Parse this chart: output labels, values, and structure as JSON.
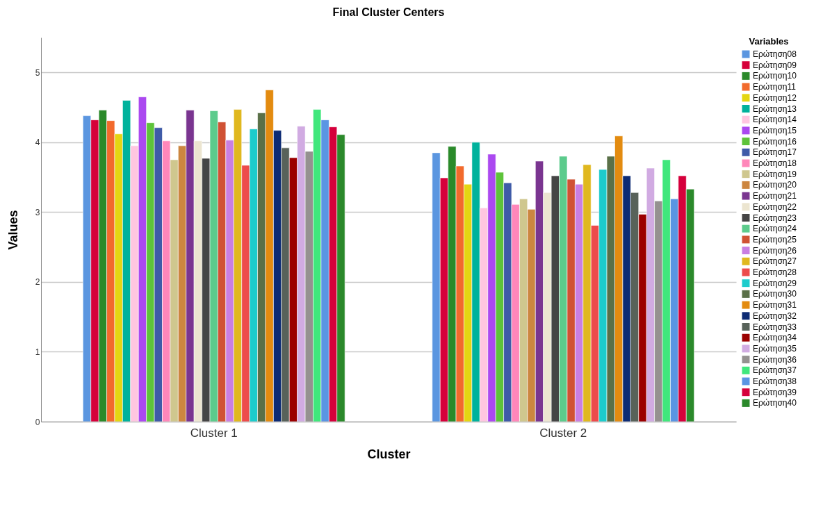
{
  "chart_data": {
    "type": "bar",
    "title": "Final Cluster Centers",
    "xlabel": "Cluster",
    "ylabel": "Values",
    "legend_title": "Variables",
    "legend": "right",
    "grid": "y",
    "ylim": [
      0,
      5.5
    ],
    "yticks": [
      0,
      1,
      2,
      3,
      4,
      5
    ],
    "categories": [
      "Cluster 1",
      "Cluster 2"
    ],
    "series": [
      {
        "name": "Ερώτηση08",
        "color": "#5b96e0",
        "values": [
          4.38,
          3.85
        ]
      },
      {
        "name": "Ερώτηση09",
        "color": "#d6003a",
        "values": [
          4.32,
          3.49
        ]
      },
      {
        "name": "Ερώτηση10",
        "color": "#2a8a2a",
        "values": [
          4.46,
          3.94
        ]
      },
      {
        "name": "Ερώτηση11",
        "color": "#f26a2c",
        "values": [
          4.31,
          3.66
        ]
      },
      {
        "name": "Ερώτηση12",
        "color": "#e4d612",
        "values": [
          4.12,
          3.4
        ]
      },
      {
        "name": "Ερώτηση13",
        "color": "#00b29c",
        "values": [
          4.6,
          4.0
        ]
      },
      {
        "name": "Ερώτηση14",
        "color": "#ffc6e0",
        "values": [
          3.95,
          3.06
        ]
      },
      {
        "name": "Ερώτηση15",
        "color": "#ab49f0",
        "values": [
          4.65,
          3.83
        ]
      },
      {
        "name": "Ερώτηση16",
        "color": "#5ec33a",
        "values": [
          4.28,
          3.57
        ]
      },
      {
        "name": "Ερώτηση17",
        "color": "#3f5ba8",
        "values": [
          4.21,
          3.42
        ]
      },
      {
        "name": "Ερώτηση18",
        "color": "#ff87ba",
        "values": [
          4.02,
          3.11
        ]
      },
      {
        "name": "Ερώτηση19",
        "color": "#cfc78e",
        "values": [
          3.75,
          3.19
        ]
      },
      {
        "name": "Ερώτηση20",
        "color": "#cc8640",
        "values": [
          3.95,
          3.04
        ]
      },
      {
        "name": "Ερώτηση21",
        "color": "#7a3590",
        "values": [
          4.46,
          3.73
        ]
      },
      {
        "name": "Ερώτηση22",
        "color": "#ece5d0",
        "values": [
          4.02,
          3.28
        ]
      },
      {
        "name": "Ερώτηση23",
        "color": "#454545",
        "values": [
          3.77,
          3.52
        ]
      },
      {
        "name": "Ερώτηση24",
        "color": "#5ccb8c",
        "values": [
          4.45,
          3.8
        ]
      },
      {
        "name": "Ερώτηση25",
        "color": "#d05234",
        "values": [
          4.29,
          3.47
        ]
      },
      {
        "name": "Ερώτηση26",
        "color": "#c97fe2",
        "values": [
          4.03,
          3.4
        ]
      },
      {
        "name": "Ερώτηση27",
        "color": "#e0b81f",
        "values": [
          4.47,
          3.68
        ]
      },
      {
        "name": "Ερώτηση28",
        "color": "#ed4b4b",
        "values": [
          3.67,
          2.81
        ]
      },
      {
        "name": "Ερώτηση29",
        "color": "#1dcccc",
        "values": [
          4.19,
          3.61
        ]
      },
      {
        "name": "Ερώτηση30",
        "color": "#5a7048",
        "values": [
          4.42,
          3.8
        ]
      },
      {
        "name": "Ερώτηση31",
        "color": "#e38b10",
        "values": [
          4.75,
          4.09
        ]
      },
      {
        "name": "Ερώτηση32",
        "color": "#0d2b74",
        "values": [
          4.17,
          3.52
        ]
      },
      {
        "name": "Ερώτηση33",
        "color": "#58625a",
        "values": [
          3.92,
          3.28
        ]
      },
      {
        "name": "Ερώτηση34",
        "color": "#9b0000",
        "values": [
          3.78,
          2.97
        ]
      },
      {
        "name": "Ερώτηση35",
        "color": "#d1abe2",
        "values": [
          4.23,
          3.63
        ]
      },
      {
        "name": "Ερώτηση36",
        "color": "#959190",
        "values": [
          3.87,
          3.16
        ]
      },
      {
        "name": "Ερώτηση37",
        "color": "#40e77c",
        "values": [
          4.47,
          3.75
        ]
      },
      {
        "name": "Ερώτηση38",
        "color": "#5a95e3",
        "values": [
          4.32,
          3.19
        ]
      },
      {
        "name": "Ερώτηση39",
        "color": "#d5003b",
        "values": [
          4.22,
          3.52
        ]
      },
      {
        "name": "Ερώτηση40",
        "color": "#2b892b",
        "values": [
          4.11,
          3.33
        ]
      }
    ]
  }
}
